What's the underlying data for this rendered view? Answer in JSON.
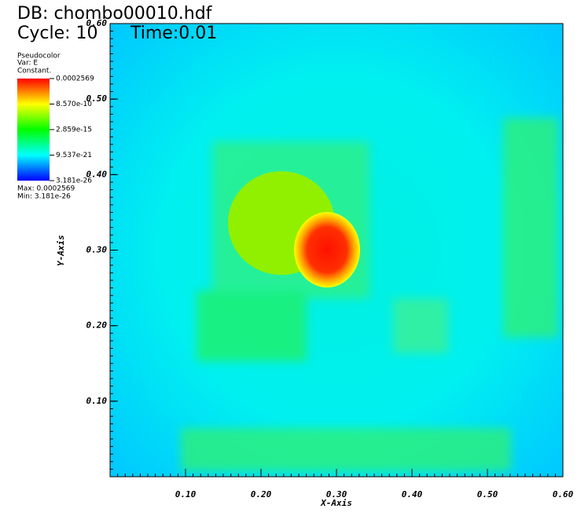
{
  "chart_data": {
    "type": "pseudocolor",
    "db_title": "DB: chombo00010.hdf",
    "cycle": "Cycle: 10",
    "time": "Time:0.01",
    "legend": {
      "plot": "Pseudocolor",
      "var": "Var: E",
      "mode": "Constant.",
      "log_scale": true,
      "ticks": [
        0.0002569,
        {
          "value": 8.57e-10,
          "label": "8.570e-10"
        },
        {
          "value": 2.859e-15,
          "label": "2.859e-15"
        },
        {
          "value": 9.537e-21,
          "label": "9.537e-21"
        },
        {
          "value": 3.181e-26,
          "label": "3.181e-26"
        }
      ],
      "max": "Max:  0.0002569",
      "min": "Min:  3.181e-26"
    },
    "xlabel": "X-Axis",
    "ylabel": "Y-Axis",
    "xlim": [
      0,
      0.6
    ],
    "ylim": [
      0,
      0.6
    ],
    "xticks": [
      {
        "value": 0.1,
        "label": "0.10"
      },
      {
        "value": 0.2,
        "label": "0.20"
      },
      {
        "value": 0.3,
        "label": "0.30"
      },
      {
        "value": 0.4,
        "label": "0.40"
      },
      {
        "value": 0.5,
        "label": "0.50"
      },
      {
        "value": 0.6,
        "label": "0.60"
      }
    ],
    "yticks": [
      {
        "value": 0.1,
        "label": "0.10"
      },
      {
        "value": 0.2,
        "label": "0.20"
      },
      {
        "value": 0.3,
        "label": "0.30"
      },
      {
        "value": 0.4,
        "label": "0.40"
      },
      {
        "value": 0.5,
        "label": "0.50"
      },
      {
        "value": 0.6,
        "label": "0.60"
      }
    ]
  }
}
